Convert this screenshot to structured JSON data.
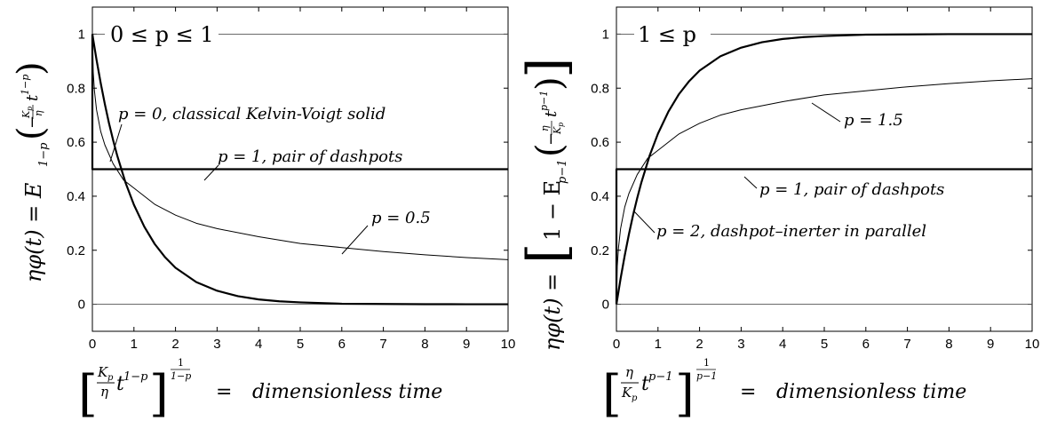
{
  "chart_data": [
    {
      "type": "line",
      "x_range": [
        0,
        10
      ],
      "ylim": [
        -0.1,
        1.1
      ],
      "xticks": [
        "0",
        "1",
        "2",
        "3",
        "4",
        "5",
        "6",
        "7",
        "8",
        "9",
        "10"
      ],
      "yticks": [
        "0",
        "0.2",
        "0.4",
        "0.6",
        "0.8",
        "1"
      ],
      "grid": false,
      "range_label": "0 ≤ p ≤ 1",
      "ylabel": {
        "lhs": "ηφ(t) = E",
        "sub": "1−p",
        "num": "K",
        "num_sub": "p",
        "den": "η",
        "pow": "1−p",
        "minus": "−",
        "t": "t"
      },
      "xlabel": {
        "num": "K",
        "num_sub": "p",
        "den": "η",
        "t": "t",
        "pow": "1−p",
        "outer_num": "1",
        "outer_den": "1−p",
        "equals": "=",
        "text": "dimensionless time"
      },
      "series": [
        {
          "p": 0,
          "label": "p = 0, classical Kelvin-Voigt solid",
          "x": [
            0,
            0.02,
            0.1,
            0.2,
            0.3,
            0.4,
            0.5,
            0.6,
            0.8,
            1.0,
            1.25,
            1.5,
            1.75,
            2.0,
            2.5,
            3.0,
            3.5,
            4.0,
            4.5,
            5.0,
            6.0,
            7.0,
            8.0,
            9.0,
            10.0
          ],
          "y": [
            1.0,
            0.98,
            0.905,
            0.819,
            0.741,
            0.67,
            0.607,
            0.549,
            0.449,
            0.368,
            0.287,
            0.223,
            0.174,
            0.135,
            0.082,
            0.05,
            0.03,
            0.018,
            0.011,
            0.007,
            0.002,
            0.001,
            0.0003,
            0.0001,
            0.0
          ]
        },
        {
          "p": 1,
          "label": "p = 1, pair of dashpots",
          "x": [
            0,
            0,
            0.05,
            10.0
          ],
          "y": [
            1.0,
            0.5,
            0.5,
            0.5
          ]
        },
        {
          "p": 0.5,
          "label": "p = 0.5",
          "x": [
            0,
            0.02,
            0.05,
            0.1,
            0.2,
            0.3,
            0.5,
            0.75,
            1.0,
            1.5,
            2.0,
            2.5,
            3.0,
            4.0,
            5.0,
            6.0,
            7.0,
            8.0,
            9.0,
            10.0
          ],
          "y": [
            1.0,
            0.86,
            0.79,
            0.72,
            0.64,
            0.59,
            0.52,
            0.46,
            0.43,
            0.37,
            0.33,
            0.3,
            0.28,
            0.25,
            0.225,
            0.21,
            0.195,
            0.183,
            0.173,
            0.165
          ]
        }
      ]
    },
    {
      "type": "line",
      "x_range": [
        0,
        10
      ],
      "ylim": [
        -0.1,
        1.1
      ],
      "xticks": [
        "0",
        "1",
        "2",
        "3",
        "4",
        "5",
        "6",
        "7",
        "8",
        "9",
        "10"
      ],
      "yticks": [
        "0",
        "0.2",
        "0.4",
        "0.6",
        "0.8",
        "1"
      ],
      "grid": false,
      "range_label": "1 ≤ p",
      "ylabel": {
        "lhs": "ηφ(t) =",
        "one_minus": "1 − E",
        "sub": "p−1",
        "minus": "−",
        "num": "η",
        "den": "K",
        "den_sub": "p",
        "t": "t",
        "pow": "p−1"
      },
      "xlabel": {
        "num": "η",
        "den": "K",
        "den_sub": "p",
        "t": "t",
        "pow": "p−1",
        "outer_num": "1",
        "outer_den": "p−1",
        "equals": "=",
        "text": "dimensionless time"
      },
      "series": [
        {
          "p": 2,
          "label": "p = 2, dashpot–inerter in parallel",
          "x": [
            0,
            0.1,
            0.2,
            0.3,
            0.4,
            0.5,
            0.6,
            0.8,
            1.0,
            1.25,
            1.5,
            1.75,
            2.0,
            2.5,
            3.0,
            3.5,
            4.0,
            4.5,
            5.0,
            6.0,
            7.0,
            8.0,
            9.0,
            10.0
          ],
          "y": [
            0.0,
            0.095,
            0.181,
            0.259,
            0.33,
            0.393,
            0.451,
            0.551,
            0.632,
            0.713,
            0.777,
            0.826,
            0.865,
            0.918,
            0.95,
            0.97,
            0.982,
            0.989,
            0.993,
            0.998,
            0.999,
            1.0,
            1.0,
            1.0
          ]
        },
        {
          "p": 1,
          "label": "p = 1, pair of dashpots",
          "x": [
            0,
            0,
            0.05,
            10.0
          ],
          "y": [
            0.0,
            0.5,
            0.5,
            0.5
          ]
        },
        {
          "p": 1.5,
          "label": "p = 1.5",
          "x": [
            0,
            0.02,
            0.05,
            0.1,
            0.2,
            0.3,
            0.5,
            0.75,
            1.0,
            1.5,
            2.0,
            2.5,
            3.0,
            4.0,
            5.0,
            6.0,
            7.0,
            8.0,
            9.0,
            10.0
          ],
          "y": [
            0.0,
            0.14,
            0.21,
            0.28,
            0.36,
            0.41,
            0.48,
            0.54,
            0.57,
            0.63,
            0.67,
            0.7,
            0.72,
            0.75,
            0.775,
            0.79,
            0.805,
            0.817,
            0.827,
            0.835
          ]
        }
      ]
    }
  ]
}
